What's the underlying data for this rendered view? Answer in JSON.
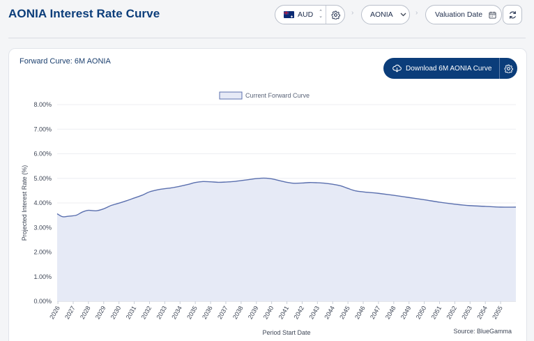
{
  "header": {
    "title": "AONIA Interest Rate Curve",
    "currency": "AUD",
    "index": "AONIA",
    "valuation_date_label": "Valuation Date"
  },
  "card": {
    "title": "Forward Curve: 6M AONIA",
    "download_label": "Download 6M AONIA Curve"
  },
  "colors": {
    "accent": "#0b3d7a",
    "line": "#5a6fae",
    "fill": "#e6eaf6"
  },
  "icons": [
    "flag-au-icon",
    "updown-icon",
    "gear-icon",
    "chevron-down-icon",
    "calendar-icon",
    "refresh-icon",
    "cloud-download-icon"
  ],
  "chart_data": {
    "type": "area",
    "title": "",
    "xlabel": "Period Start Date",
    "ylabel": "Projected Interest Rate (%)",
    "source": "Source: BlueGamma",
    "legend": "top-center",
    "grid": true,
    "ylim": [
      0,
      8
    ],
    "y_ticks": [
      "0.00%",
      "1.00%",
      "2.00%",
      "3.00%",
      "4.00%",
      "5.00%",
      "6.00%",
      "7.00%",
      "8.00%"
    ],
    "x_ticks": [
      "2026",
      "2027",
      "2028",
      "2029",
      "2030",
      "2031",
      "2032",
      "2033",
      "2034",
      "2035",
      "2036",
      "2037",
      "2038",
      "2039",
      "2040",
      "2041",
      "2042",
      "2043",
      "2044",
      "2045",
      "2046",
      "2047",
      "2048",
      "2049",
      "2050",
      "2051",
      "2052",
      "2053",
      "2054",
      "2055"
    ],
    "xlim": [
      2025.95,
      2056.0
    ],
    "series": [
      {
        "name": "Current Forward Curve",
        "x": [
          2025.95,
          2026.3,
          2026.7,
          2027.2,
          2027.6,
          2028.0,
          2028.5,
          2029.0,
          2029.5,
          2030.0,
          2030.5,
          2031.0,
          2031.5,
          2032.0,
          2032.5,
          2033.0,
          2033.5,
          2034.0,
          2034.5,
          2035.0,
          2035.5,
          2036.0,
          2036.5,
          2037.0,
          2037.5,
          2038.0,
          2038.5,
          2039.0,
          2039.5,
          2040.0,
          2040.5,
          2041.0,
          2041.5,
          2042.0,
          2042.5,
          2043.0,
          2043.5,
          2044.0,
          2044.5,
          2045.0,
          2045.5,
          2046.0,
          2046.5,
          2047.0,
          2048.0,
          2049.0,
          2050.0,
          2051.0,
          2052.0,
          2053.0,
          2054.0,
          2055.0,
          2056.0
        ],
        "values": [
          3.56,
          3.44,
          3.46,
          3.5,
          3.63,
          3.7,
          3.68,
          3.76,
          3.9,
          3.99,
          4.09,
          4.2,
          4.31,
          4.45,
          4.53,
          4.58,
          4.62,
          4.68,
          4.75,
          4.83,
          4.87,
          4.86,
          4.84,
          4.85,
          4.87,
          4.91,
          4.95,
          4.99,
          5.01,
          4.98,
          4.91,
          4.84,
          4.8,
          4.81,
          4.83,
          4.82,
          4.8,
          4.76,
          4.7,
          4.59,
          4.49,
          4.45,
          4.42,
          4.39,
          4.31,
          4.22,
          4.13,
          4.03,
          3.95,
          3.89,
          3.86,
          3.83,
          3.83
        ]
      }
    ]
  }
}
